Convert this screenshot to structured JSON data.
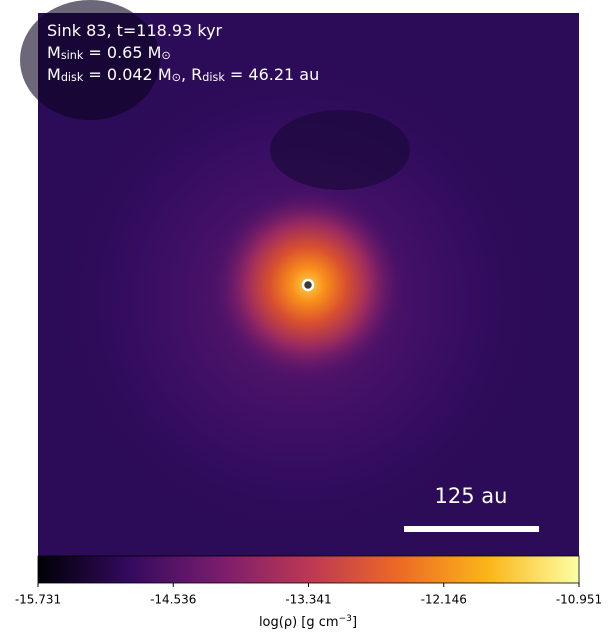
{
  "chart_data": {
    "type": "image",
    "annotation_lines": [
      [
        {
          "text": "Sink 83, t=118.93 kyr"
        }
      ],
      [
        {
          "text": "M"
        },
        {
          "text": "sink",
          "sub": true
        },
        {
          "text": " = 0.65 M"
        },
        {
          "text": "⊙",
          "sub": true
        }
      ],
      [
        {
          "text": "M"
        },
        {
          "text": "disk",
          "sub": true
        },
        {
          "text": " = 0.042 M"
        },
        {
          "text": "⊙",
          "sub": true
        },
        {
          "text": ", R"
        },
        {
          "text": "disk",
          "sub": true
        },
        {
          "text": " = 46.21 au"
        }
      ]
    ],
    "scale_bar_label": "125 au",
    "colorbar": {
      "label": [
        {
          "text": "log(ρ) [g cm"
        },
        {
          "text": "−3",
          "sup": true
        },
        {
          "text": "]"
        }
      ],
      "clim": [
        -15.731,
        -10.951
      ],
      "ticks": [
        -15.731,
        -14.536,
        -13.341,
        -12.146,
        -10.951
      ],
      "colormap": [
        "#000004",
        "#320a5e",
        "#781c6d",
        "#bc3754",
        "#ed6925",
        "#fbb61a",
        "#fcffa4"
      ]
    }
  }
}
